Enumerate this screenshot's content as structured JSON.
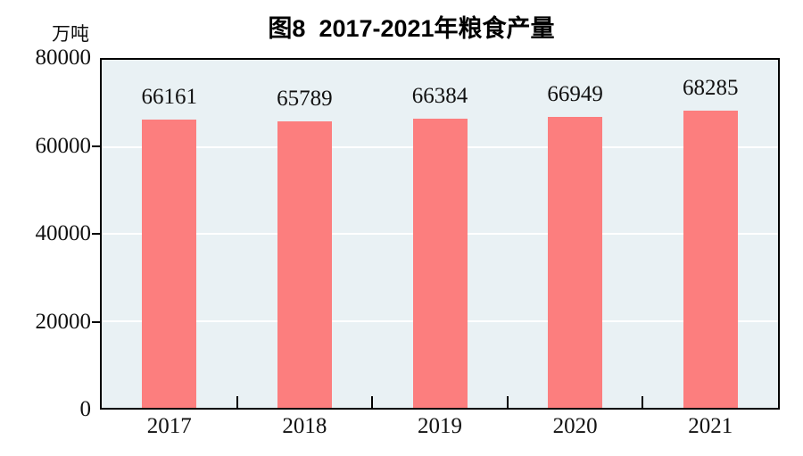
{
  "title": "图8  2017-2021年粮食产量",
  "y_unit_label": "万吨",
  "chart_data": {
    "type": "bar",
    "title": "图8 2017-2021年粮食产量",
    "categories": [
      "2017",
      "2018",
      "2019",
      "2020",
      "2021"
    ],
    "values": [
      66161,
      65789,
      66384,
      66949,
      68285
    ],
    "xlabel": "",
    "ylabel": "万吨",
    "ylim": [
      0,
      80000
    ],
    "yticks": [
      0,
      20000,
      40000,
      60000,
      80000
    ],
    "gridlines_at": [
      20000,
      40000,
      60000
    ],
    "grid": true,
    "legend": false,
    "value_labels_shown": true,
    "bar_color": "#FC7E7E",
    "plot_background_color": "#E9F1F4",
    "gridline_color": "#FFFFFF",
    "axis_color": "#000000",
    "text_color": "#111111"
  }
}
